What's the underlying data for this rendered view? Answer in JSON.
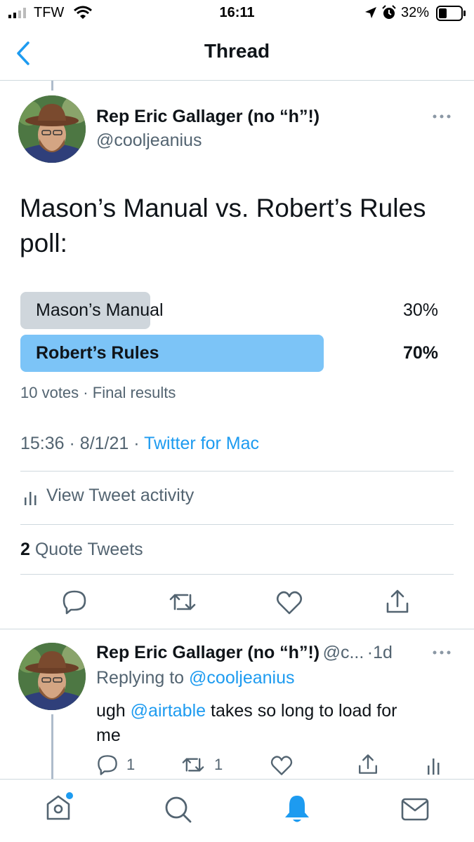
{
  "status_bar": {
    "carrier": "TFW",
    "time": "16:11",
    "battery": "32%"
  },
  "nav": {
    "title": "Thread",
    "back_icon": "chevron-left-icon"
  },
  "tweet": {
    "author_name": "Rep Eric Gallager (no “h”!)",
    "author_handle": "@cooljeanius",
    "text_line1": "Mason’s Manual vs. Robert’s Rules",
    "text_line2": "poll:",
    "poll": {
      "options": [
        {
          "label": "Mason’s Manual",
          "percent_label": "30%",
          "percent": 30,
          "winner": false
        },
        {
          "label": "Robert’s Rules",
          "percent_label": "70%",
          "percent": 70,
          "winner": true
        }
      ],
      "votes_label": "10 votes",
      "status_label": "Final results"
    },
    "time": "15:36",
    "date": "8/1/21",
    "source": "Twitter for Mac",
    "activity_label": "View Tweet activity",
    "quote_count": "2",
    "quote_label": "Quote Tweets"
  },
  "reply": {
    "author_name": "Rep Eric Gallager (no “h”!)",
    "author_handle": "@c...",
    "age": "1d",
    "replying_prefix": "Replying to",
    "replying_to": "@cooljeanius",
    "text_mention": "@airtable",
    "text_rest": "takes so long to load for",
    "text_line2": "me",
    "reply_count": "1",
    "retweet_count": "1"
  },
  "colors": {
    "accent": "#1d9bf0",
    "poll_winner": "#7cc4f7",
    "poll_loser": "#cfd6dc",
    "muted": "#536471"
  }
}
